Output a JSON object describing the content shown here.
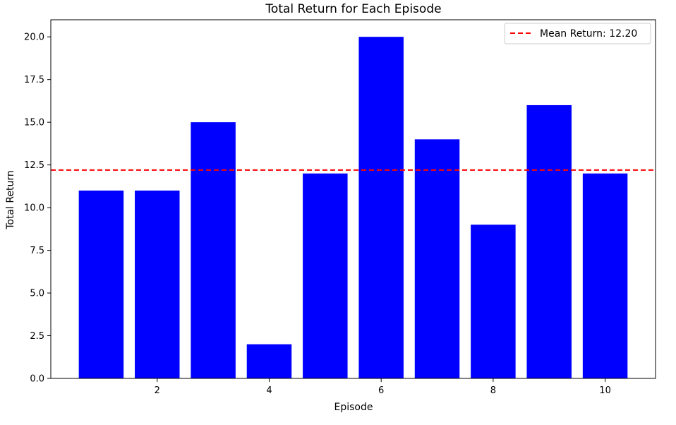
{
  "colors": {
    "bar": "#0000ff",
    "mean_line": "#ff0000",
    "axis": "#000000",
    "background": "#ffffff",
    "legend_border": "#cccccc"
  },
  "chart_data": {
    "type": "bar",
    "title": "Total Return for Each Episode",
    "xlabel": "Episode",
    "ylabel": "Total Return",
    "categories": [
      1,
      2,
      3,
      4,
      5,
      6,
      7,
      8,
      9,
      10
    ],
    "values": [
      11,
      11,
      15,
      2,
      12,
      20,
      14,
      9,
      16,
      12
    ],
    "xlim": [
      0.1,
      10.9
    ],
    "ylim": [
      0,
      21
    ],
    "x_ticks": [
      2,
      4,
      6,
      8,
      10
    ],
    "x_tick_labels": [
      "2",
      "4",
      "6",
      "8",
      "10"
    ],
    "y_ticks": [
      0,
      2.5,
      5,
      7.5,
      10,
      12.5,
      15,
      17.5,
      20
    ],
    "y_tick_labels": [
      "0.0",
      "2.5",
      "5.0",
      "7.5",
      "10.0",
      "12.5",
      "15.0",
      "17.5",
      "20.0"
    ],
    "mean": 12.2,
    "mean_label": "Mean Return: 12.20",
    "legend_placement": "top-right",
    "grid": false
  }
}
